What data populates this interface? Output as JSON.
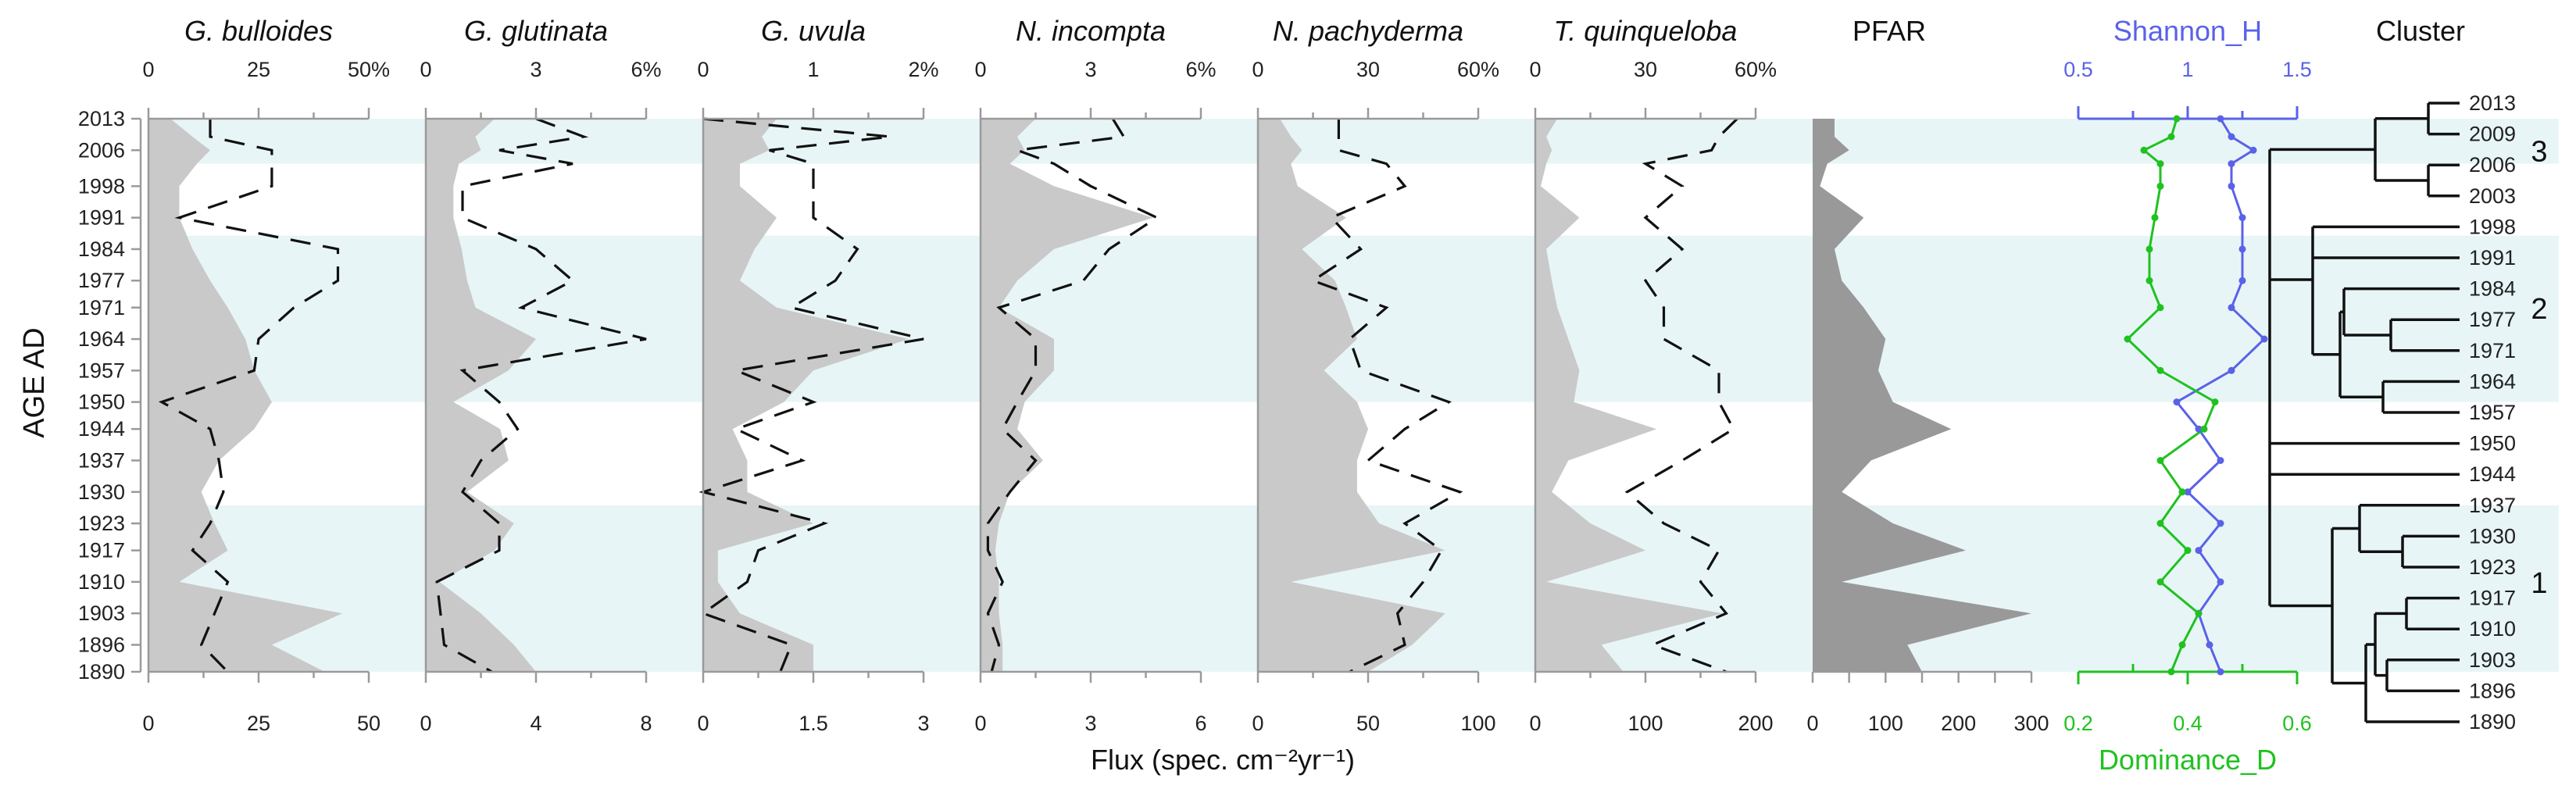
{
  "chart_data": {
    "type": "stratigraphic-line-area",
    "y_axis_label": "AGE AD",
    "x_axis_label": "Flux (spec. cm⁻²yr⁻¹)",
    "ages": [
      2013,
      2009,
      2006,
      2003,
      1998,
      1991,
      1984,
      1977,
      1971,
      1964,
      1957,
      1950,
      1944,
      1937,
      1930,
      1923,
      1917,
      1910,
      1903,
      1896,
      1890
    ],
    "age_ticks": [
      2013,
      2006,
      1998,
      1991,
      1984,
      1977,
      1971,
      1964,
      1957,
      1950,
      1944,
      1937,
      1930,
      1923,
      1917,
      1910,
      1903,
      1896,
      1890
    ],
    "zones": [
      {
        "label": "3",
        "from": 2013,
        "to": 2003,
        "shaded": true
      },
      {
        "label": "",
        "from": 2003,
        "to": 1987,
        "shaded": false
      },
      {
        "label": "2",
        "from": 1987,
        "to": 1950,
        "shaded": true
      },
      {
        "label": "",
        "from": 1950,
        "to": 1927,
        "shaded": false
      },
      {
        "label": "1",
        "from": 1927,
        "to": 1890,
        "shaded": true
      }
    ],
    "species": [
      {
        "name": "G. bulloides",
        "percent_ticks": [
          "0",
          "25",
          "50%"
        ],
        "percent_max": 50,
        "flux_ticks": [
          "0",
          "25",
          "50"
        ],
        "flux_max": 50,
        "flux": [
          5,
          10,
          14,
          11,
          7,
          7,
          10,
          14,
          18,
          22,
          24,
          28,
          24,
          16,
          12,
          15,
          18,
          7,
          44,
          28,
          40
        ],
        "percent": [
          14,
          14,
          28,
          28,
          28,
          7,
          43,
          43,
          33,
          25,
          24,
          3,
          14,
          16,
          17,
          14,
          10,
          18,
          15,
          12,
          18
        ]
      },
      {
        "name": "G. glutinata",
        "percent_ticks": [
          "0",
          "3",
          "6%"
        ],
        "percent_max": 6,
        "flux_ticks": [
          "0",
          "4",
          "8"
        ],
        "flux_max": 8,
        "flux": [
          2.5,
          1.8,
          2,
          1.2,
          1,
          1,
          1.3,
          1.5,
          1.8,
          4,
          3,
          1,
          2.7,
          3,
          1.5,
          3.2,
          2.5,
          0.5,
          2,
          3.2,
          4
        ],
        "percent": [
          3,
          4.3,
          2,
          4,
          1,
          1,
          3,
          4,
          2.6,
          6,
          1,
          2,
          2.5,
          1.5,
          1,
          2,
          2,
          0.3,
          0.4,
          0.5,
          1.8
        ]
      },
      {
        "name": "G. uvula",
        "percent_ticks": [
          "0",
          "1",
          "2%"
        ],
        "percent_max": 2,
        "flux_ticks": [
          "0",
          "1.5",
          "3"
        ],
        "flux_max": 3,
        "flux": [
          1,
          0.8,
          0.9,
          0.5,
          0.5,
          1,
          0.7,
          0.5,
          1,
          2.8,
          1.5,
          1.1,
          0.4,
          0.6,
          0.6,
          1.5,
          0.2,
          0.2,
          0.5,
          1.5,
          1.5
        ],
        "percent": [
          0,
          1.7,
          0.6,
          1,
          1,
          1,
          1.4,
          1.2,
          0.8,
          2,
          0.3,
          1,
          0.3,
          0.9,
          0,
          1.1,
          0.5,
          0.4,
          0,
          0.8,
          0.7
        ]
      },
      {
        "name": "N. incompta",
        "percent_ticks": [
          "0",
          "3",
          "6%"
        ],
        "percent_max": 6,
        "flux_ticks": [
          "0",
          "3",
          "6"
        ],
        "flux_max": 6,
        "flux": [
          1.5,
          1,
          1.2,
          0.8,
          2,
          4.7,
          2,
          1,
          0.5,
          2,
          2,
          1.2,
          1,
          1.7,
          0.8,
          0.5,
          0.4,
          0.5,
          0.5,
          0.6,
          0.6
        ],
        "percent": [
          3.6,
          3.9,
          1,
          2,
          3,
          4.8,
          3.5,
          2.8,
          0.5,
          1.5,
          1.5,
          1,
          0.6,
          1.5,
          0.8,
          0.2,
          0.2,
          0.6,
          0.2,
          0.5,
          0.3
        ]
      },
      {
        "name": "N. pachyderma",
        "percent_ticks": [
          "0",
          "30",
          "60%"
        ],
        "percent_max": 60,
        "flux_ticks": [
          "0",
          "50",
          "100"
        ],
        "flux_max": 100,
        "flux": [
          10,
          15,
          20,
          15,
          18,
          40,
          20,
          35,
          40,
          45,
          30,
          45,
          50,
          45,
          45,
          55,
          85,
          15,
          85,
          70,
          50
        ],
        "percent": [
          22,
          22,
          22,
          35,
          40,
          20,
          28,
          15,
          35,
          25,
          28,
          52,
          40,
          30,
          55,
          40,
          50,
          45,
          38,
          40,
          25
        ]
      },
      {
        "name": "T. quinqueloba",
        "percent_ticks": [
          "0",
          "30",
          "60%"
        ],
        "percent_max": 60,
        "flux_ticks": [
          "0",
          "100",
          "200"
        ],
        "flux_max": 200,
        "flux": [
          20,
          10,
          15,
          10,
          5,
          40,
          10,
          15,
          20,
          30,
          40,
          35,
          110,
          30,
          15,
          50,
          100,
          10,
          170,
          60,
          80
        ],
        "percent": [
          55,
          50,
          48,
          30,
          40,
          30,
          40,
          30,
          35,
          35,
          50,
          50,
          54,
          40,
          25,
          35,
          50,
          45,
          52,
          32,
          52
        ]
      }
    ],
    "pfar": {
      "name": "PFAR",
      "ticks": [
        "0",
        "50",
        "100",
        "150",
        "200",
        "250",
        "300"
      ],
      "max": 300,
      "values": [
        30,
        30,
        50,
        20,
        10,
        70,
        30,
        40,
        70,
        100,
        90,
        110,
        190,
        80,
        40,
        110,
        210,
        40,
        300,
        130,
        150
      ]
    },
    "diversity": {
      "shannon_label": "Shannon_H",
      "shannon_ticks": [
        "0.5",
        "1",
        "1.5"
      ],
      "shannon_min": 0.5,
      "shannon_max": 1.5,
      "shannon": [
        1.15,
        1.2,
        1.3,
        1.2,
        1.2,
        1.25,
        1.25,
        1.25,
        1.2,
        1.35,
        1.2,
        0.95,
        1.05,
        1.15,
        1.0,
        1.15,
        1.05,
        1.15,
        1.05,
        1.1,
        1.15
      ],
      "dominance_label": "Dominance_D",
      "dominance_ticks": [
        "0.2",
        "0.4",
        "0.6"
      ],
      "dominance_min": 0.2,
      "dominance_max": 0.6,
      "dominance": [
        0.38,
        0.37,
        0.32,
        0.35,
        0.35,
        0.34,
        0.33,
        0.33,
        0.35,
        0.29,
        0.35,
        0.45,
        0.43,
        0.35,
        0.39,
        0.35,
        0.4,
        0.35,
        0.42,
        0.39,
        0.37
      ]
    },
    "cluster": {
      "title": "Cluster",
      "leaf_labels": [
        "2013",
        "2009",
        "2006",
        "2003",
        "1998",
        "1991",
        "1984",
        "1977",
        "1971",
        "1964",
        "1957",
        "1950",
        "1944",
        "1937",
        "1930",
        "1923",
        "1917",
        "1910",
        "1903",
        "1896",
        "1890"
      ],
      "group_labels": [
        {
          "label": "3",
          "near": 2006
        },
        {
          "label": "2",
          "near": 1971
        },
        {
          "label": "1",
          "near": 1910
        }
      ]
    }
  }
}
